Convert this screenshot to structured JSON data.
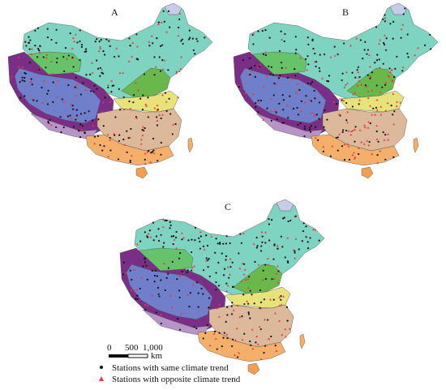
{
  "panels": [
    {
      "label": "A"
    },
    {
      "label": "B"
    },
    {
      "label": "C"
    }
  ],
  "scale": {
    "ticks": [
      "0",
      "500",
      "1,000"
    ],
    "unit": "km"
  },
  "legend": {
    "same": {
      "label": "Stations with same climate trend",
      "color": "#111111",
      "symbol": "dot"
    },
    "opposite": {
      "label": "Stations with opposite climate trend",
      "color": "#e83a3a",
      "symbol": "triangle"
    }
  },
  "regions": {
    "northeast": "#7fd3c1",
    "northwest_desert": "#66c36a",
    "tibet_plateau_outer": "#7a2e86",
    "tibet_plateau_inner": "#6f7fc9",
    "tibet_edge": "#b695c6",
    "north_china": "#6ab84c",
    "central": "#e8e27a",
    "southeast": "#dcb99a",
    "south": "#f4b06a",
    "hainan": "#f0a050",
    "lake": "#c8cbe8"
  }
}
